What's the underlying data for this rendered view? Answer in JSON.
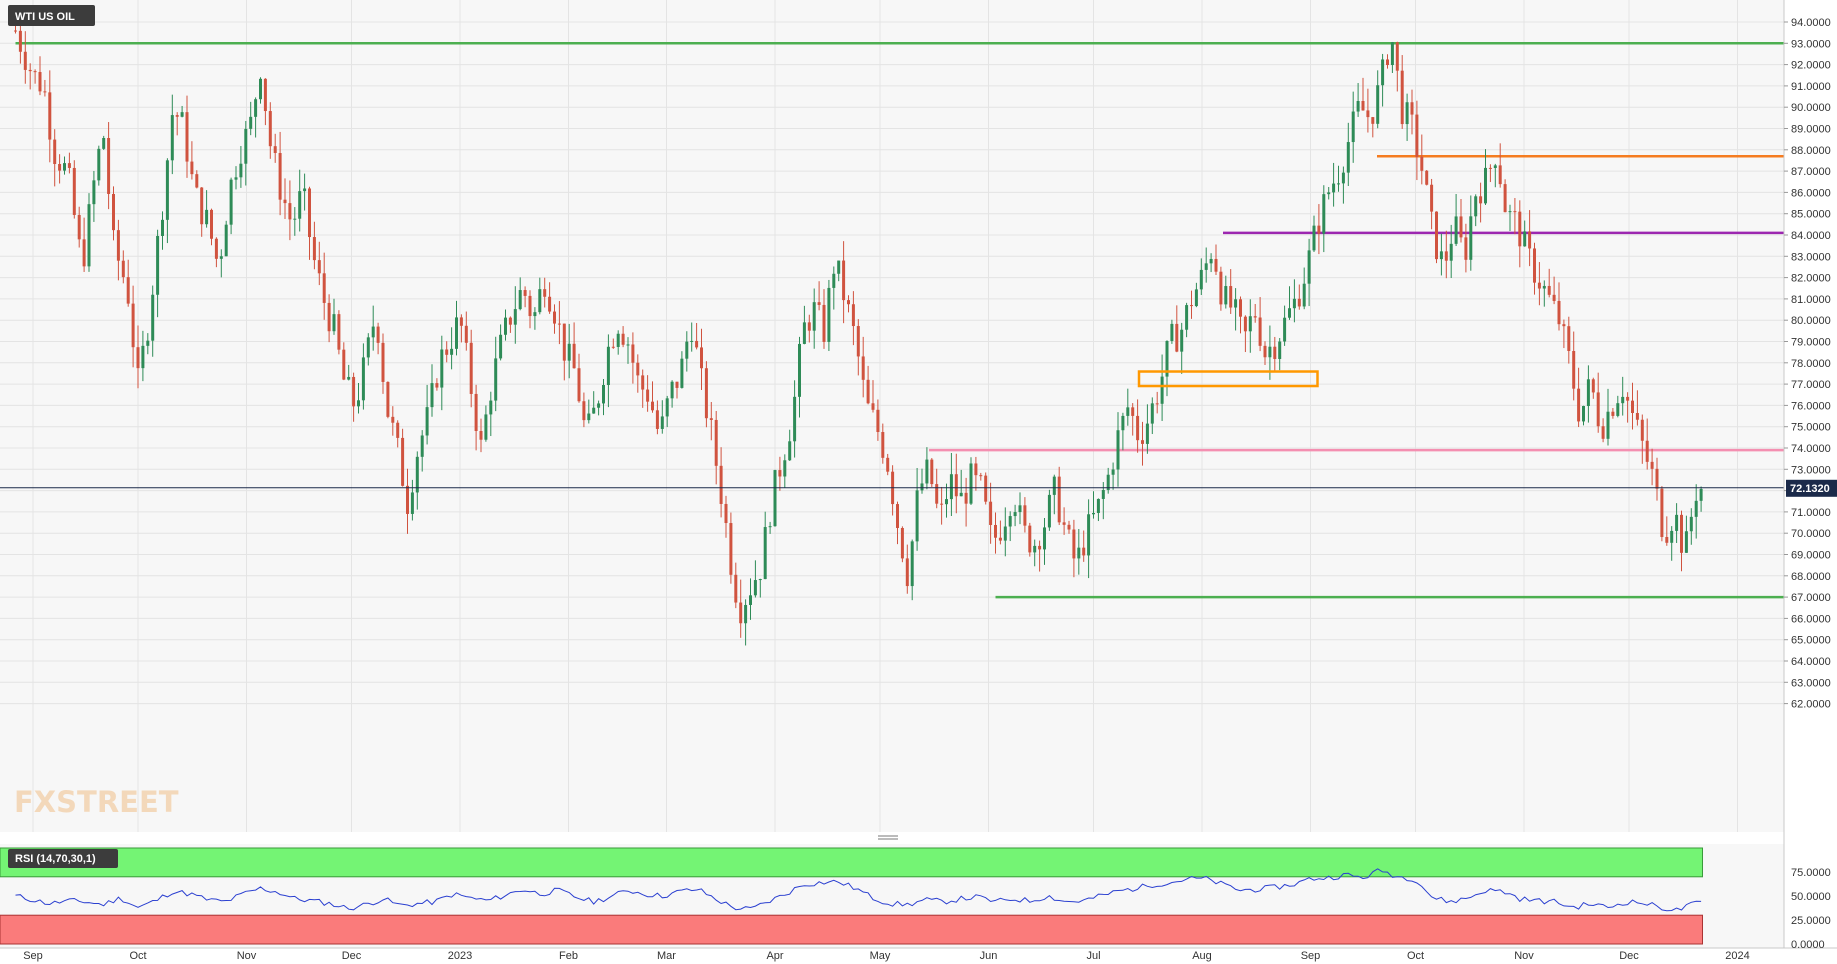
{
  "chart_data": {
    "type": "candlestick",
    "instrument": "WTI US OIL",
    "last_price": "72.1320",
    "y_axis": {
      "min": 62.0,
      "max": 94.5,
      "ticks": [
        "94.0000",
        "93.0000",
        "92.0000",
        "91.0000",
        "90.0000",
        "89.0000",
        "88.0000",
        "87.0000",
        "86.0000",
        "85.0000",
        "84.0000",
        "83.0000",
        "82.0000",
        "81.0000",
        "80.0000",
        "79.0000",
        "78.0000",
        "77.0000",
        "76.0000",
        "75.0000",
        "74.0000",
        "73.0000",
        "72.0000",
        "71.0000",
        "70.0000",
        "69.0000",
        "68.0000",
        "67.0000",
        "66.0000",
        "65.0000",
        "64.0000",
        "63.0000",
        "62.0000"
      ]
    },
    "x_axis": {
      "ticks": [
        {
          "label": "Sep",
          "day": 0
        },
        {
          "label": "Oct",
          "day": 30
        },
        {
          "label": "Nov",
          "day": 61
        },
        {
          "label": "Dec",
          "day": 91
        },
        {
          "label": "2023",
          "day": 122
        },
        {
          "label": "Feb",
          "day": 153
        },
        {
          "label": "Mar",
          "day": 181
        },
        {
          "label": "Apr",
          "day": 212
        },
        {
          "label": "May",
          "day": 242
        },
        {
          "label": "Jun",
          "day": 273
        },
        {
          "label": "Jul",
          "day": 303
        },
        {
          "label": "Aug",
          "day": 334
        },
        {
          "label": "Sep",
          "day": 365
        },
        {
          "label": "Oct",
          "day": 395
        },
        {
          "label": "Nov",
          "day": 426
        },
        {
          "label": "Dec",
          "day": 456
        },
        {
          "label": "2024",
          "day": 487
        }
      ]
    },
    "price_path": [
      [
        -5,
        93.6
      ],
      [
        0,
        91.5
      ],
      [
        3,
        91.0
      ],
      [
        6,
        88.0
      ],
      [
        10,
        86.8
      ],
      [
        14,
        82.5
      ],
      [
        17,
        86.0
      ],
      [
        20,
        89.0
      ],
      [
        23,
        83.5
      ],
      [
        27,
        81.5
      ],
      [
        30,
        77.0
      ],
      [
        33,
        80.0
      ],
      [
        37,
        85.5
      ],
      [
        40,
        90.0
      ],
      [
        43,
        89.0
      ],
      [
        46,
        86.0
      ],
      [
        50,
        84.5
      ],
      [
        53,
        82.5
      ],
      [
        56,
        86.0
      ],
      [
        59,
        88.0
      ],
      [
        62,
        89.0
      ],
      [
        65,
        92.0
      ],
      [
        68,
        88.0
      ],
      [
        71,
        86.0
      ],
      [
        74,
        84.5
      ],
      [
        77,
        86.0
      ],
      [
        80,
        83.0
      ],
      [
        83,
        81.0
      ],
      [
        86,
        79.5
      ],
      [
        89,
        77.0
      ],
      [
        92,
        76.0
      ],
      [
        95,
        78.0
      ],
      [
        98,
        80.5
      ],
      [
        101,
        76.0
      ],
      [
        104,
        74.0
      ],
      [
        107,
        71.5
      ],
      [
        110,
        74.0
      ],
      [
        113,
        75.5
      ],
      [
        116,
        78.0
      ],
      [
        119,
        79.0
      ],
      [
        122,
        80.0
      ],
      [
        125,
        77.0
      ],
      [
        128,
        74.0
      ],
      [
        131,
        77.0
      ],
      [
        134,
        79.0
      ],
      [
        137,
        80.5
      ],
      [
        140,
        81.5
      ],
      [
        143,
        80.0
      ],
      [
        146,
        82.0
      ],
      [
        149,
        80.5
      ],
      [
        152,
        78.5
      ],
      [
        155,
        77.5
      ],
      [
        158,
        74.5
      ],
      [
        161,
        76.0
      ],
      [
        164,
        78.5
      ],
      [
        167,
        80.0
      ],
      [
        170,
        79.0
      ],
      [
        173,
        77.0
      ],
      [
        176,
        76.5
      ],
      [
        179,
        74.5
      ],
      [
        182,
        76.5
      ],
      [
        185,
        77.5
      ],
      [
        188,
        80.0
      ],
      [
        191,
        77.0
      ],
      [
        194,
        74.5
      ],
      [
        197,
        71.5
      ],
      [
        200,
        68.0
      ],
      [
        202,
        66.5
      ],
      [
        205,
        67.5
      ],
      [
        208,
        68.5
      ],
      [
        211,
        71.5
      ],
      [
        214,
        73.5
      ],
      [
        217,
        75.5
      ],
      [
        220,
        79.5
      ],
      [
        223,
        80.5
      ],
      [
        226,
        79.5
      ],
      [
        229,
        82.8
      ],
      [
        232,
        81.0
      ],
      [
        235,
        79.0
      ],
      [
        238,
        76.0
      ],
      [
        241,
        75.0
      ],
      [
        244,
        73.5
      ],
      [
        247,
        70.5
      ],
      [
        250,
        68.0
      ],
      [
        253,
        72.0
      ],
      [
        256,
        73.0
      ],
      [
        259,
        70.5
      ],
      [
        262,
        72.5
      ],
      [
        265,
        71.5
      ],
      [
        268,
        72.5
      ],
      [
        271,
        72.0
      ],
      [
        274,
        69.5
      ],
      [
        277,
        70.5
      ],
      [
        280,
        72.0
      ],
      [
        283,
        70.0
      ],
      [
        286,
        69.5
      ],
      [
        289,
        70.5
      ],
      [
        292,
        72.0
      ],
      [
        295,
        70.0
      ],
      [
        298,
        68.5
      ],
      [
        301,
        70.0
      ],
      [
        304,
        71.0
      ],
      [
        307,
        72.5
      ],
      [
        310,
        74.5
      ],
      [
        313,
        76.0
      ],
      [
        316,
        74.5
      ],
      [
        319,
        75.5
      ],
      [
        322,
        77.0
      ],
      [
        325,
        79.0
      ],
      [
        328,
        79.5
      ],
      [
        331,
        81.0
      ],
      [
        334,
        82.0
      ],
      [
        337,
        83.5
      ],
      [
        340,
        81.0
      ],
      [
        343,
        80.5
      ],
      [
        346,
        79.0
      ],
      [
        349,
        80.5
      ],
      [
        352,
        78.5
      ],
      [
        355,
        79.0
      ],
      [
        358,
        80.0
      ],
      [
        361,
        81.0
      ],
      [
        364,
        82.5
      ],
      [
        367,
        84.5
      ],
      [
        370,
        86.0
      ],
      [
        373,
        87.0
      ],
      [
        376,
        88.5
      ],
      [
        379,
        90.0
      ],
      [
        382,
        89.5
      ],
      [
        385,
        91.0
      ],
      [
        388,
        93.5
      ],
      [
        391,
        90.0
      ],
      [
        394,
        89.0
      ],
      [
        397,
        87.0
      ],
      [
        400,
        84.0
      ],
      [
        403,
        82.5
      ],
      [
        406,
        84.5
      ],
      [
        409,
        83.0
      ],
      [
        412,
        86.0
      ],
      [
        415,
        86.5
      ],
      [
        418,
        88.0
      ],
      [
        421,
        85.0
      ],
      [
        424,
        84.5
      ],
      [
        427,
        83.0
      ],
      [
        430,
        82.0
      ],
      [
        433,
        81.0
      ],
      [
        436,
        80.0
      ],
      [
        439,
        78.0
      ],
      [
        442,
        75.5
      ],
      [
        445,
        77.0
      ],
      [
        448,
        75.0
      ],
      [
        451,
        76.0
      ],
      [
        454,
        77.0
      ],
      [
        457,
        75.5
      ],
      [
        460,
        74.0
      ],
      [
        463,
        72.5
      ],
      [
        466,
        70.0
      ],
      [
        469,
        71.0
      ],
      [
        472,
        69.0
      ],
      [
        475,
        72.0
      ],
      [
        477,
        72.13
      ]
    ],
    "horizontal_levels": [
      {
        "value": 93.0,
        "color": "#4caf50",
        "from_day": -5,
        "to_day": 540
      },
      {
        "value": 87.7,
        "color": "#f57c20",
        "from_day": 384,
        "to_day": 540
      },
      {
        "value": 84.1,
        "color": "#9c27b0",
        "from_day": 340,
        "to_day": 540
      },
      {
        "value": 73.9,
        "color": "#f48fb1",
        "from_day": 256,
        "to_day": 540
      },
      {
        "value": 67.0,
        "color": "#4caf50",
        "from_day": 275,
        "to_day": 540
      }
    ],
    "zone_box": {
      "from_day": 316,
      "to_day": 367,
      "low": 77.05,
      "high": 77.45,
      "color": "#ff9800"
    },
    "colors": {
      "up": "#2e8b57",
      "down": "#d0533f",
      "last_price_line": "#1b2a4a",
      "last_price_tag": "#1b2a4a"
    },
    "rsi": {
      "label": "RSI (14,70,30,1)",
      "ticks": [
        "75.0000",
        "50.0000",
        "25.0000",
        "0.0000"
      ],
      "overbought": 70,
      "oversold": 30,
      "line_color": "#2a3fd0",
      "values": [
        [
          -5,
          50
        ],
        [
          5,
          42
        ],
        [
          10,
          45
        ],
        [
          15,
          44
        ],
        [
          20,
          41
        ],
        [
          25,
          48
        ],
        [
          30,
          38
        ],
        [
          35,
          45
        ],
        [
          40,
          55
        ],
        [
          45,
          52
        ],
        [
          50,
          46
        ],
        [
          55,
          44
        ],
        [
          60,
          52
        ],
        [
          65,
          58
        ],
        [
          70,
          54
        ],
        [
          75,
          47
        ],
        [
          80,
          45
        ],
        [
          85,
          42
        ],
        [
          90,
          37
        ],
        [
          95,
          41
        ],
        [
          100,
          47
        ],
        [
          105,
          40
        ],
        [
          110,
          42
        ],
        [
          115,
          44
        ],
        [
          120,
          52
        ],
        [
          125,
          48
        ],
        [
          130,
          45
        ],
        [
          135,
          51
        ],
        [
          140,
          57
        ],
        [
          145,
          52
        ],
        [
          150,
          56
        ],
        [
          155,
          49
        ],
        [
          160,
          44
        ],
        [
          165,
          49
        ],
        [
          170,
          56
        ],
        [
          175,
          52
        ],
        [
          180,
          50
        ],
        [
          185,
          55
        ],
        [
          190,
          57
        ],
        [
          195,
          47
        ],
        [
          200,
          38
        ],
        [
          205,
          36
        ],
        [
          210,
          44
        ],
        [
          215,
          52
        ],
        [
          220,
          62
        ],
        [
          225,
          64
        ],
        [
          230,
          65
        ],
        [
          235,
          58
        ],
        [
          240,
          48
        ],
        [
          245,
          42
        ],
        [
          250,
          41
        ],
        [
          255,
          46
        ],
        [
          260,
          44
        ],
        [
          265,
          47
        ],
        [
          270,
          49
        ],
        [
          275,
          44
        ],
        [
          280,
          47
        ],
        [
          285,
          45
        ],
        [
          290,
          50
        ],
        [
          295,
          44
        ],
        [
          300,
          45
        ],
        [
          305,
          50
        ],
        [
          310,
          55
        ],
        [
          315,
          58
        ],
        [
          320,
          62
        ],
        [
          325,
          64
        ],
        [
          330,
          68
        ],
        [
          335,
          68
        ],
        [
          340,
          62
        ],
        [
          345,
          56
        ],
        [
          350,
          57
        ],
        [
          355,
          59
        ],
        [
          360,
          62
        ],
        [
          365,
          68
        ],
        [
          370,
          69
        ],
        [
          375,
          72
        ],
        [
          380,
          69
        ],
        [
          385,
          77
        ],
        [
          390,
          70
        ],
        [
          395,
          68
        ],
        [
          400,
          48
        ],
        [
          405,
          44
        ],
        [
          410,
          48
        ],
        [
          415,
          56
        ],
        [
          420,
          55
        ],
        [
          425,
          47
        ],
        [
          430,
          45
        ],
        [
          435,
          44
        ],
        [
          440,
          38
        ],
        [
          445,
          42
        ],
        [
          450,
          38
        ],
        [
          455,
          44
        ],
        [
          460,
          43
        ],
        [
          465,
          38
        ],
        [
          470,
          35
        ],
        [
          473,
          40
        ],
        [
          477,
          44
        ]
      ]
    }
  },
  "watermark": "FXSTREET"
}
